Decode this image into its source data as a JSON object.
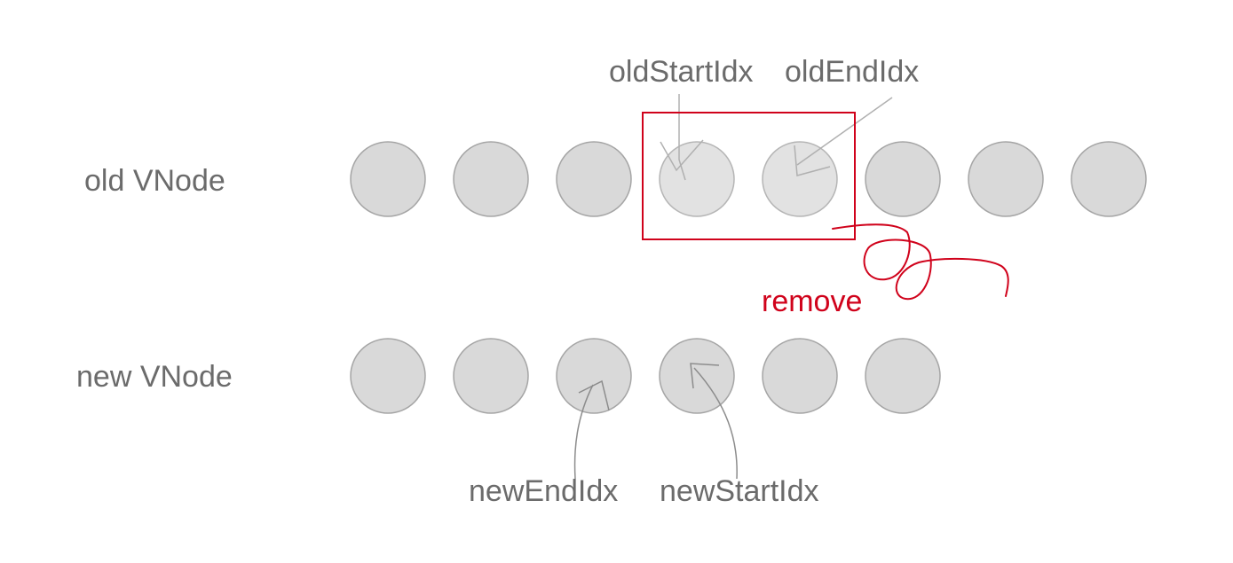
{
  "rows": {
    "old": {
      "label": "old VNode",
      "node_count": 8,
      "faded_nodes": [
        3,
        4
      ]
    },
    "new": {
      "label": "new VNode",
      "node_count": 6
    }
  },
  "pointers": {
    "old_start": "oldStartIdx",
    "old_end": "oldEndIdx",
    "new_end": "newEndIdx",
    "new_start": "newStartIdx"
  },
  "annotation": {
    "remove_label": "remove",
    "color": "#d0021b"
  },
  "colors": {
    "node_fill": "#d9d9d9",
    "node_stroke": "#a5a5a5",
    "text": "#6b6b6b"
  }
}
